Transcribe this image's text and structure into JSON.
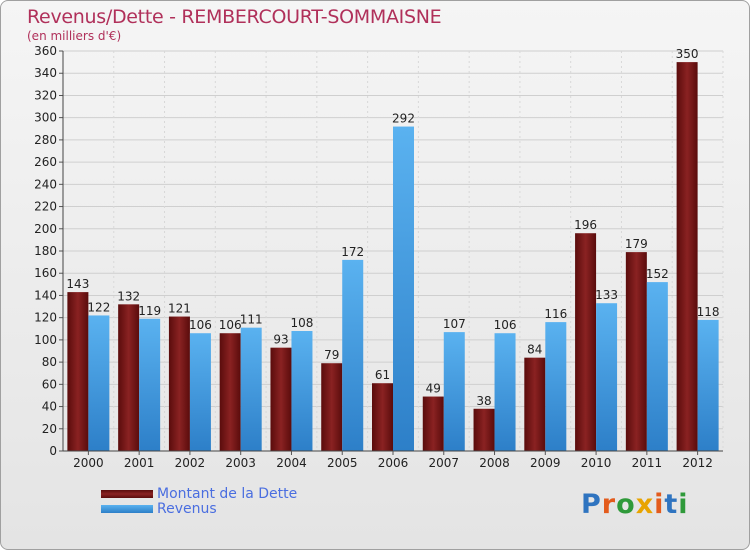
{
  "header": {
    "title": "Revenus/Dette - REMBERCOURT-SOMMAISNE",
    "subtitle": "(en milliers d'€)"
  },
  "legend": {
    "items": [
      {
        "label": "Montant de la Dette",
        "color": "#7a1414"
      },
      {
        "label": "Revenus",
        "color": "#4aa3e8"
      }
    ]
  },
  "brand": {
    "text": "Proxiti",
    "colors": [
      "#2f74c0",
      "#e35b1c",
      "#2f9a3a",
      "#e8a400",
      "#e35b1c",
      "#2f74c0",
      "#2f9a3a"
    ]
  },
  "chart_data": {
    "type": "bar",
    "title": "Revenus/Dette - REMBERCOURT-SOMMAISNE",
    "ylabel": "(en milliers d'€)",
    "xlabel": "",
    "categories": [
      "2000",
      "2001",
      "2002",
      "2003",
      "2004",
      "2005",
      "2006",
      "2007",
      "2008",
      "2009",
      "2010",
      "2011",
      "2012"
    ],
    "series": [
      {
        "name": "Montant de la Dette",
        "color": "#7a1414",
        "values": [
          143,
          132,
          121,
          106,
          93,
          79,
          61,
          49,
          38,
          84,
          196,
          179,
          350
        ]
      },
      {
        "name": "Revenus",
        "color": "#4aa3e8",
        "values": [
          122,
          119,
          106,
          111,
          108,
          172,
          292,
          107,
          106,
          116,
          133,
          152,
          118
        ]
      }
    ],
    "ylim": [
      0,
      360
    ],
    "ytick_step": 20,
    "grid": true,
    "legend_position": "bottom-left"
  }
}
